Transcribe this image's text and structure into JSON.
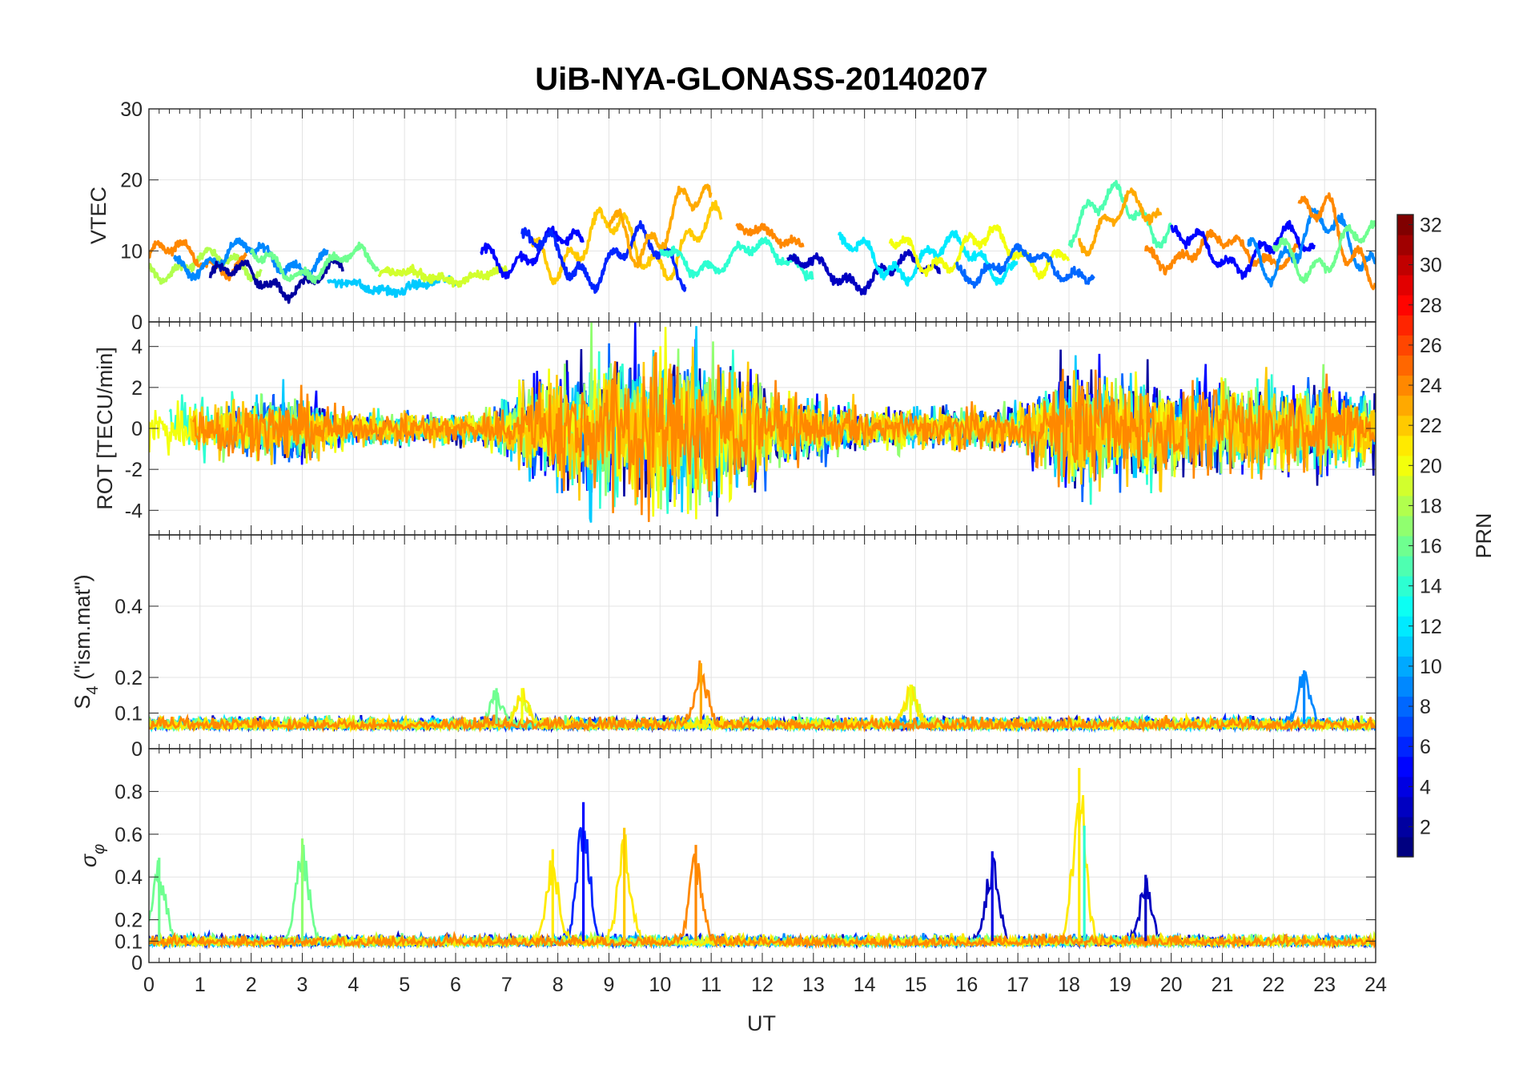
{
  "title": "UiB-NYA-GLONASS-20140207",
  "chart_data": {
    "type": "line",
    "title": "UiB-NYA-GLONASS-20140207",
    "xlabel": "UT",
    "xlim": [
      0,
      24
    ],
    "x_ticks": [
      "0",
      "1",
      "2",
      "3",
      "4",
      "5",
      "6",
      "7",
      "8",
      "9",
      "10",
      "11",
      "12",
      "13",
      "14",
      "15",
      "16",
      "17",
      "18",
      "19",
      "20",
      "21",
      "22",
      "23",
      "24"
    ],
    "grid": true,
    "panels": [
      {
        "id": "vtec",
        "ylabel": "VTEC",
        "ylim": [
          0,
          30
        ],
        "y_ticks": [
          "0",
          "10",
          "20",
          "30"
        ],
        "tick_values": [
          0,
          10,
          20,
          30
        ],
        "series_summary": [
          {
            "t_start": 0.0,
            "t_end": 2.2,
            "level": 8,
            "amp": 2.5,
            "prn": 18
          },
          {
            "t_start": 0.0,
            "t_end": 1.9,
            "level": 9,
            "amp": 3,
            "prn": 24
          },
          {
            "t_start": 0.5,
            "t_end": 3.5,
            "level": 9,
            "amp": 3,
            "prn": 9
          },
          {
            "t_start": 1.2,
            "t_end": 3.8,
            "level": 6,
            "amp": 3,
            "prn": 2
          },
          {
            "t_start": 2.0,
            "t_end": 4.5,
            "level": 8,
            "amp": 3,
            "prn": 16
          },
          {
            "t_start": 3.5,
            "t_end": 6.0,
            "level": 5,
            "amp": 1.2,
            "prn": 11
          },
          {
            "t_start": 4.5,
            "t_end": 7.0,
            "level": 6.5,
            "amp": 1.2,
            "prn": 19
          },
          {
            "t_start": 6.5,
            "t_end": 8.5,
            "level": 10,
            "amp": 4,
            "prn": 5
          },
          {
            "t_start": 7.5,
            "t_end": 11.2,
            "level": 11,
            "amp": 6,
            "prn": 22
          },
          {
            "t_start": 7.3,
            "t_end": 10.5,
            "level": 9,
            "amp": 5,
            "prn": 6
          },
          {
            "t_start": 9.0,
            "t_end": 11.0,
            "level": 14,
            "amp": 7,
            "prn": 23
          },
          {
            "t_start": 10.0,
            "t_end": 13.0,
            "level": 9,
            "amp": 3,
            "prn": 14
          },
          {
            "t_start": 11.5,
            "t_end": 12.8,
            "level": 12,
            "amp": 2,
            "prn": 24
          },
          {
            "t_start": 12.5,
            "t_end": 15.5,
            "level": 7,
            "amp": 3,
            "prn": 3
          },
          {
            "t_start": 13.5,
            "t_end": 17.0,
            "level": 9,
            "amp": 4,
            "prn": 12
          },
          {
            "t_start": 14.5,
            "t_end": 18.0,
            "level": 10,
            "amp": 4,
            "prn": 20
          },
          {
            "t_start": 15.8,
            "t_end": 18.5,
            "level": 8,
            "amp": 3,
            "prn": 8
          },
          {
            "t_start": 18.0,
            "t_end": 20.0,
            "level": 15,
            "amp": 5,
            "prn": 15
          },
          {
            "t_start": 18.2,
            "t_end": 19.8,
            "level": 14,
            "amp": 5,
            "prn": 23
          },
          {
            "t_start": 19.5,
            "t_end": 22.5,
            "level": 10,
            "amp": 3,
            "prn": 24
          },
          {
            "t_start": 20.0,
            "t_end": 22.8,
            "level": 10,
            "amp": 4,
            "prn": 5
          },
          {
            "t_start": 21.5,
            "t_end": 24.0,
            "level": 11,
            "amp": 6,
            "prn": 9
          },
          {
            "t_start": 22.5,
            "t_end": 24.0,
            "level": 12,
            "amp": 8,
            "prn": 24
          },
          {
            "t_start": 22.0,
            "t_end": 24.0,
            "level": 10,
            "amp": 5,
            "prn": 16
          }
        ]
      },
      {
        "id": "rot",
        "ylabel": "ROT [TECU/min]",
        "ylim": [
          -5.2,
          5.2
        ],
        "y_ticks": [
          "-4",
          "-2",
          "0",
          "2",
          "4"
        ],
        "tick_values": [
          -4,
          -2,
          0,
          2,
          4
        ],
        "activity_profile": [
          {
            "t": 0,
            "amp": 1.2
          },
          {
            "t": 3,
            "amp": 1.3
          },
          {
            "t": 4,
            "amp": 0.6
          },
          {
            "t": 6.5,
            "amp": 0.6
          },
          {
            "t": 7.5,
            "amp": 2.0
          },
          {
            "t": 9,
            "amp": 3.0
          },
          {
            "t": 11,
            "amp": 3.0
          },
          {
            "t": 12.5,
            "amp": 1.5
          },
          {
            "t": 14,
            "amp": 0.8
          },
          {
            "t": 17,
            "amp": 0.8
          },
          {
            "t": 18,
            "amp": 2.5
          },
          {
            "t": 20,
            "amp": 1.8
          },
          {
            "t": 23,
            "amp": 1.8
          },
          {
            "t": 24,
            "amp": 1.5
          }
        ]
      },
      {
        "id": "s4",
        "ylabel_main": "S",
        "ylabel_sub": "4",
        "ylabel_rest": " (\"ism.mat\")",
        "ylim": [
          0,
          0.6
        ],
        "y_ticks": [
          "0",
          "0.1",
          "0.2",
          "0.4"
        ],
        "tick_values": [
          0,
          0.1,
          0.2,
          0.4
        ],
        "baseline": 0.07,
        "peaks": [
          {
            "t": 10.8,
            "value": 0.24,
            "prn": 23
          },
          {
            "t": 22.6,
            "value": 0.22,
            "prn": 9
          },
          {
            "t": 7.3,
            "value": 0.17,
            "prn": 20
          },
          {
            "t": 14.9,
            "value": 0.18,
            "prn": 20
          },
          {
            "t": 6.8,
            "value": 0.17,
            "prn": 16
          }
        ]
      },
      {
        "id": "sigma_phi",
        "ylabel_main": "σ",
        "ylabel_sub": "φ",
        "ylim": [
          0,
          1
        ],
        "y_ticks": [
          "0",
          "0.1",
          "0.2",
          "0.4",
          "0.6",
          "0.8"
        ],
        "tick_values": [
          0,
          0.1,
          0.2,
          0.4,
          0.6,
          0.8
        ],
        "baseline": 0.1,
        "peaks": [
          {
            "t": 8.5,
            "value": 0.75,
            "prn": 5
          },
          {
            "t": 18.2,
            "value": 0.91,
            "prn": 21
          },
          {
            "t": 18.3,
            "value": 0.64,
            "prn": 14
          },
          {
            "t": 3.0,
            "value": 0.58,
            "prn": 17
          },
          {
            "t": 0.2,
            "value": 0.49,
            "prn": 16
          },
          {
            "t": 9.3,
            "value": 0.63,
            "prn": 22
          },
          {
            "t": 10.7,
            "value": 0.55,
            "prn": 24
          },
          {
            "t": 16.5,
            "value": 0.52,
            "prn": 4
          },
          {
            "t": 19.5,
            "value": 0.41,
            "prn": 3
          },
          {
            "t": 7.9,
            "value": 0.53,
            "prn": 21
          }
        ]
      }
    ],
    "colorbar": {
      "label": "PRN",
      "range": [
        1,
        32
      ],
      "ticks": [
        "2",
        "4",
        "6",
        "8",
        "10",
        "12",
        "14",
        "16",
        "18",
        "20",
        "22",
        "24",
        "26",
        "28",
        "30",
        "32"
      ],
      "tick_values": [
        2,
        4,
        6,
        8,
        10,
        12,
        14,
        16,
        18,
        20,
        22,
        24,
        26,
        28,
        30,
        32
      ],
      "colormap": "jet"
    }
  }
}
